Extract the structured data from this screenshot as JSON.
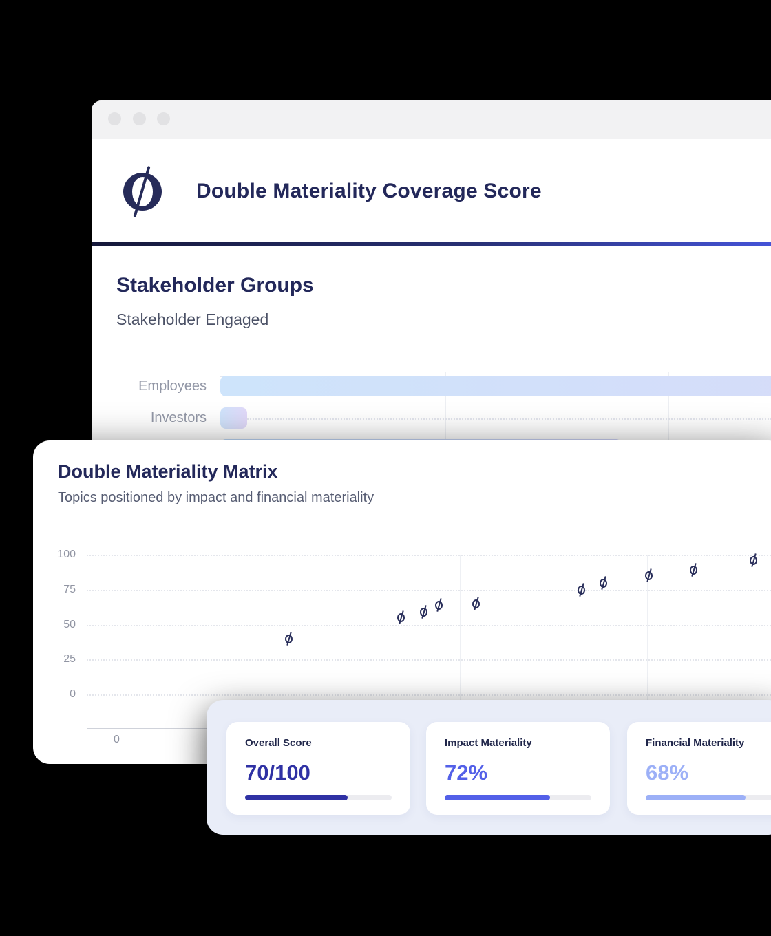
{
  "window": {
    "title": "Double Materiality Coverage Score",
    "logo": "o-slash-logo",
    "controls": "window-dots"
  },
  "stakeholder_section": {
    "title": "Stakeholder Groups",
    "subtitle": "Stakeholder Engaged"
  },
  "matrix_card": {
    "title": "Double Materiality Matrix",
    "subtitle": "Topics positioned by impact and financial materiality"
  },
  "stats_panel": {
    "cards": [
      {
        "label": "Overall Score",
        "value": "70/100",
        "percent": 70,
        "color": "#2f31a4"
      },
      {
        "label": "Impact Materiality",
        "value": "72%",
        "percent": 72,
        "color": "#5360e8"
      },
      {
        "label": "Financial Materiality",
        "value": "68%",
        "percent": 68,
        "color": "#9cb0f7"
      }
    ]
  },
  "chart_data": [
    {
      "type": "bar",
      "orientation": "horizontal",
      "title": "Stakeholder Groups",
      "subtitle": "Stakeholder Engaged",
      "categories": [
        "Employees",
        "Investors",
        ""
      ],
      "values": [
        100,
        3,
        45
      ],
      "xlim": [
        0,
        100
      ],
      "grid": "vertical gridlines, dotted row guides",
      "bar_gradient": [
        "#cee4fb",
        "#d9d8f8"
      ],
      "note": "third bar and lower rows hidden behind overlapping card"
    },
    {
      "type": "scatter",
      "title": "Double Materiality Matrix",
      "points": [
        [
          27,
          40
        ],
        [
          42,
          55
        ],
        [
          45,
          59
        ],
        [
          47,
          64
        ],
        [
          52,
          65
        ],
        [
          66,
          75
        ],
        [
          69,
          80
        ],
        [
          75,
          85
        ],
        [
          81,
          89
        ],
        [
          89,
          96
        ]
      ],
      "xlim": [
        0,
        100
      ],
      "ylim": [
        0,
        100
      ],
      "yticks": [
        0,
        25,
        50,
        75,
        100
      ],
      "xticks_visible": [
        "0"
      ],
      "marker": "o-slash-glyph",
      "marker_color": "#2a2f5b",
      "grid": "dotted horizontal, solid vertical"
    }
  ],
  "colors": {
    "background": "#000000",
    "navy_heading": "#23285a",
    "divider_gradient": [
      "#151839",
      "#4554da"
    ],
    "panel_bg": "#e9edf8",
    "muted_label": "#9297a6"
  }
}
